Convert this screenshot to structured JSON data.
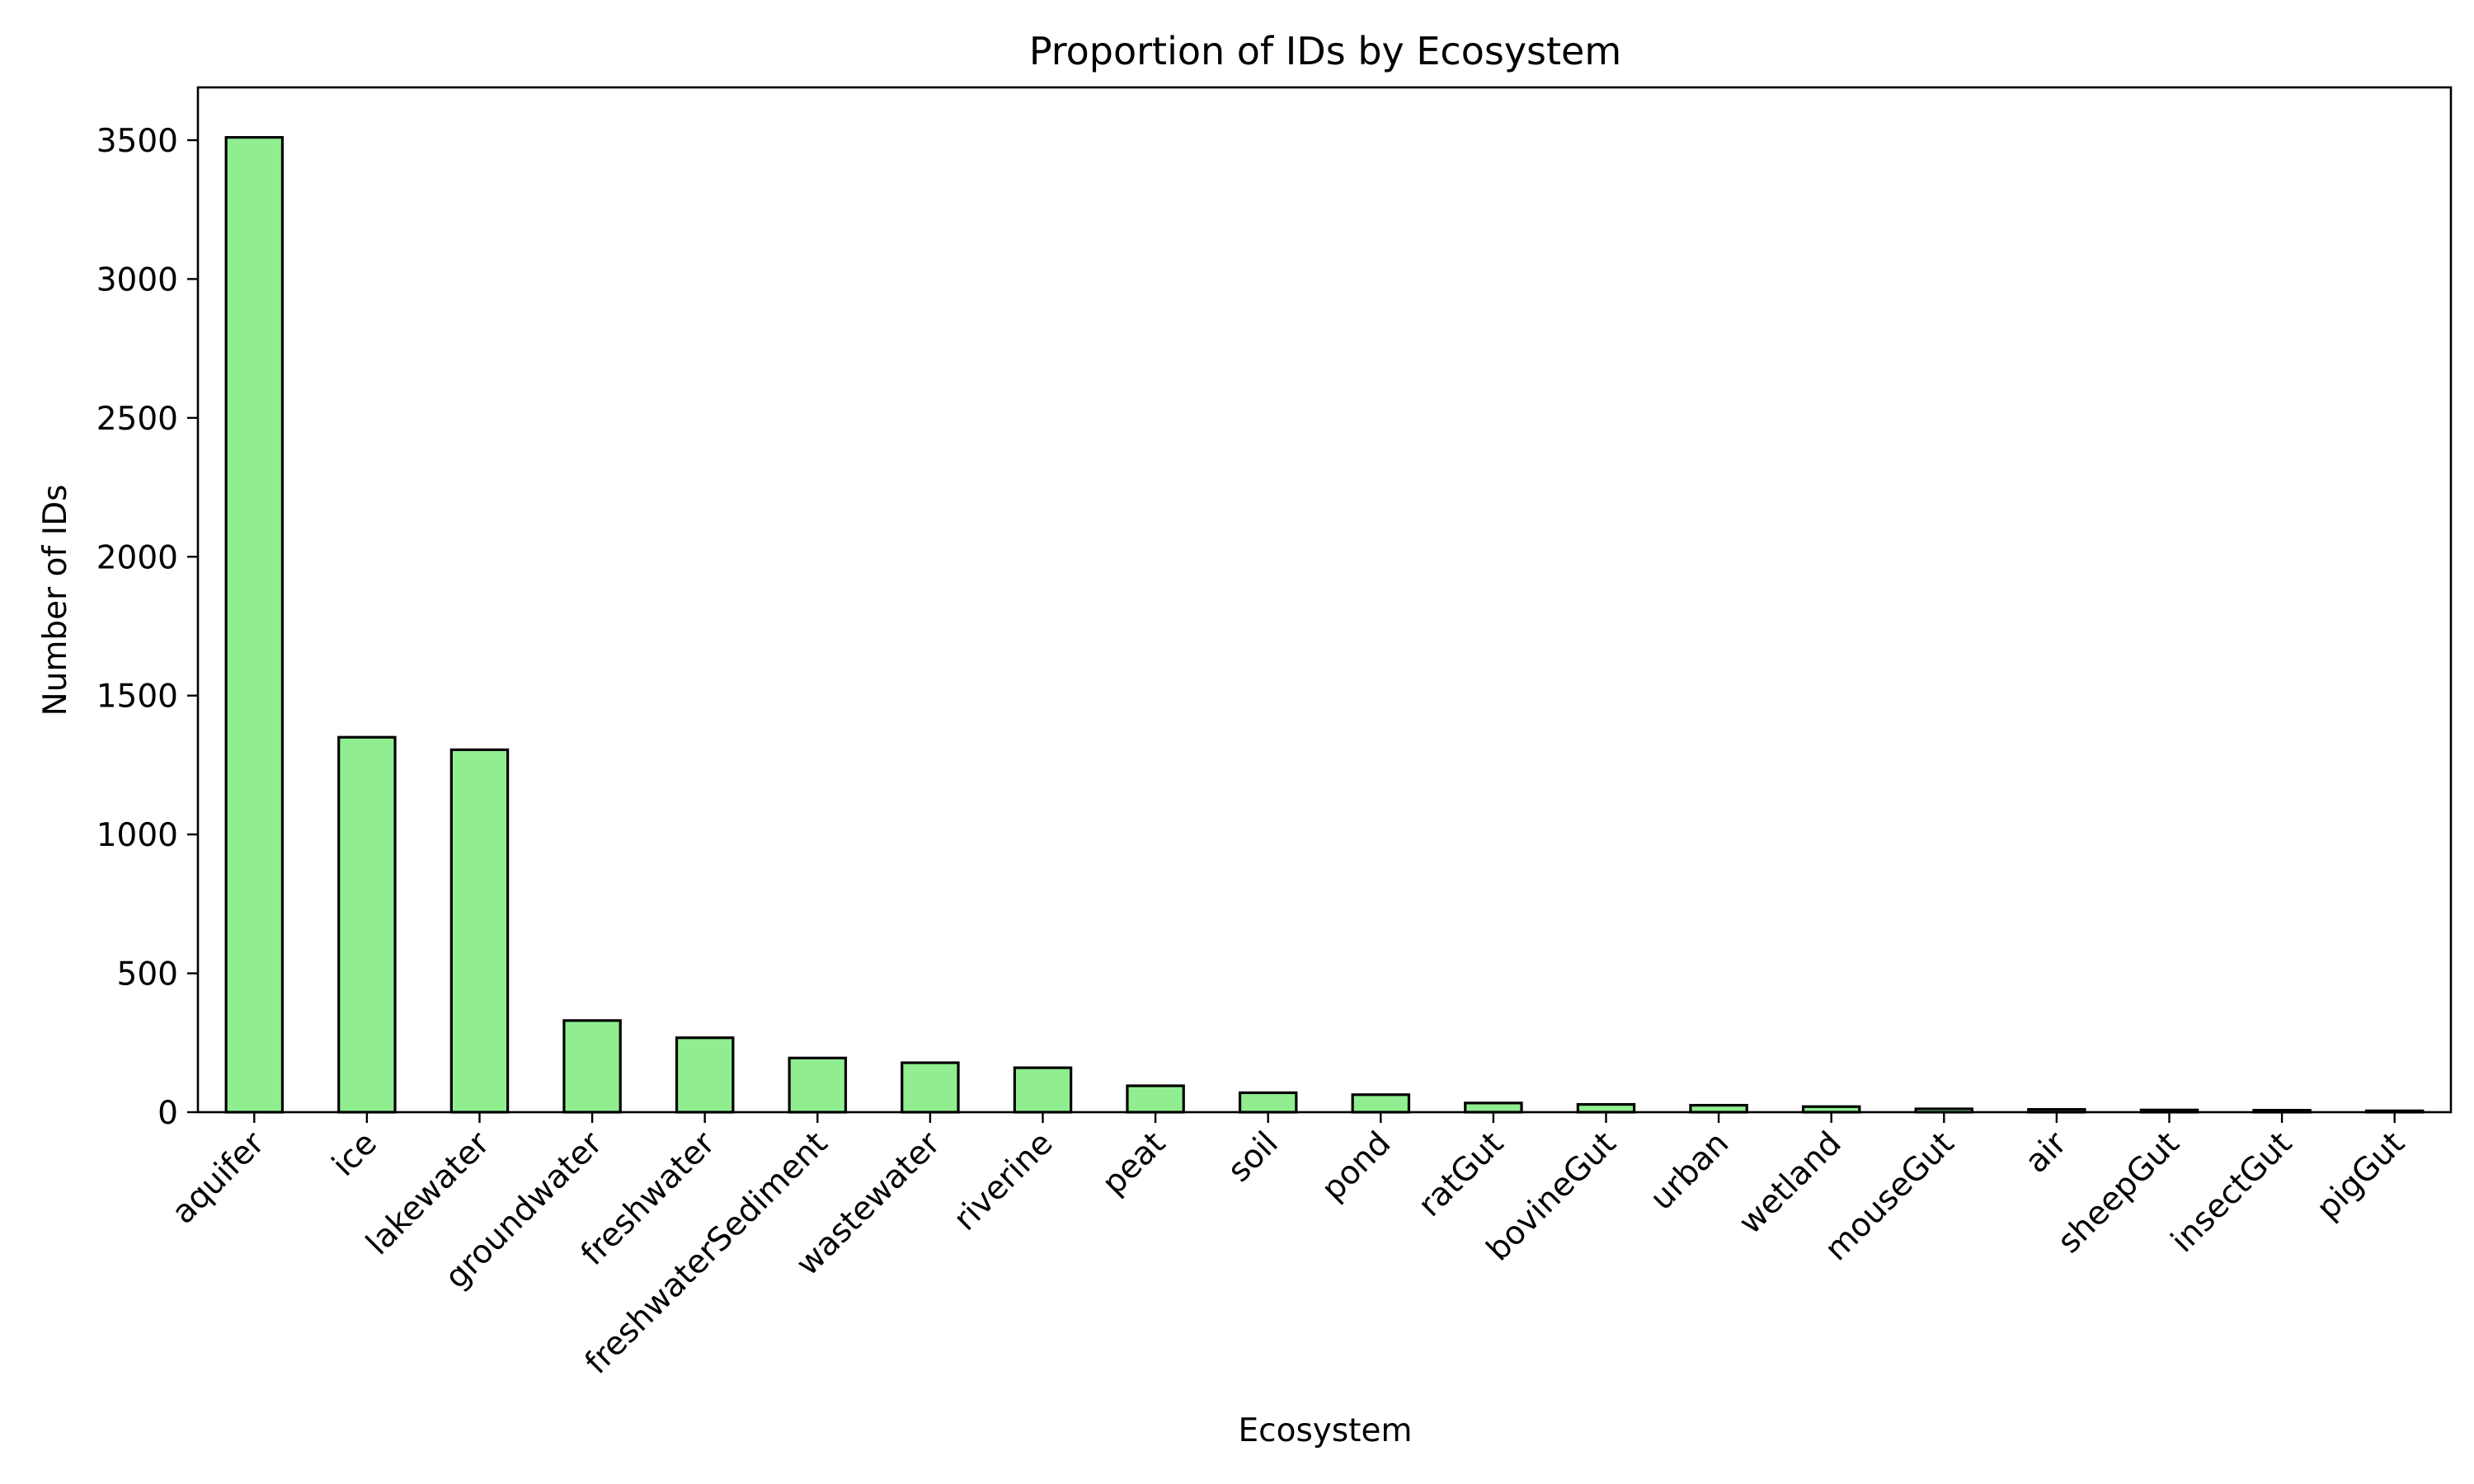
{
  "chart_data": {
    "type": "bar",
    "title": "Proportion of IDs by Ecosystem",
    "xlabel": "Ecosystem",
    "ylabel": "Number of IDs",
    "categories": [
      "aquifer",
      "ice",
      "lakewater",
      "groundwater",
      "freshwater",
      "freshwaterSediment",
      "wastewater",
      "riverine",
      "peat",
      "soil",
      "pond",
      "ratGut",
      "bovineGut",
      "urban",
      "wetland",
      "mouseGut",
      "air",
      "sheepGut",
      "insectGut",
      "pigGut"
    ],
    "values": [
      3510,
      1350,
      1305,
      330,
      268,
      195,
      178,
      160,
      95,
      70,
      63,
      33,
      28,
      25,
      20,
      12,
      10,
      8,
      7,
      5
    ],
    "ylim": [
      0,
      3690
    ],
    "yticks": [
      0,
      500,
      1000,
      1500,
      2000,
      2500,
      3000,
      3500
    ],
    "ytick_labels": [
      "0",
      "500",
      "1000",
      "1500",
      "2000",
      "2500",
      "3000",
      "3500"
    ],
    "grid": false,
    "legend": "none",
    "bar_color": "#90ee90",
    "edge_color": "#000000"
  }
}
